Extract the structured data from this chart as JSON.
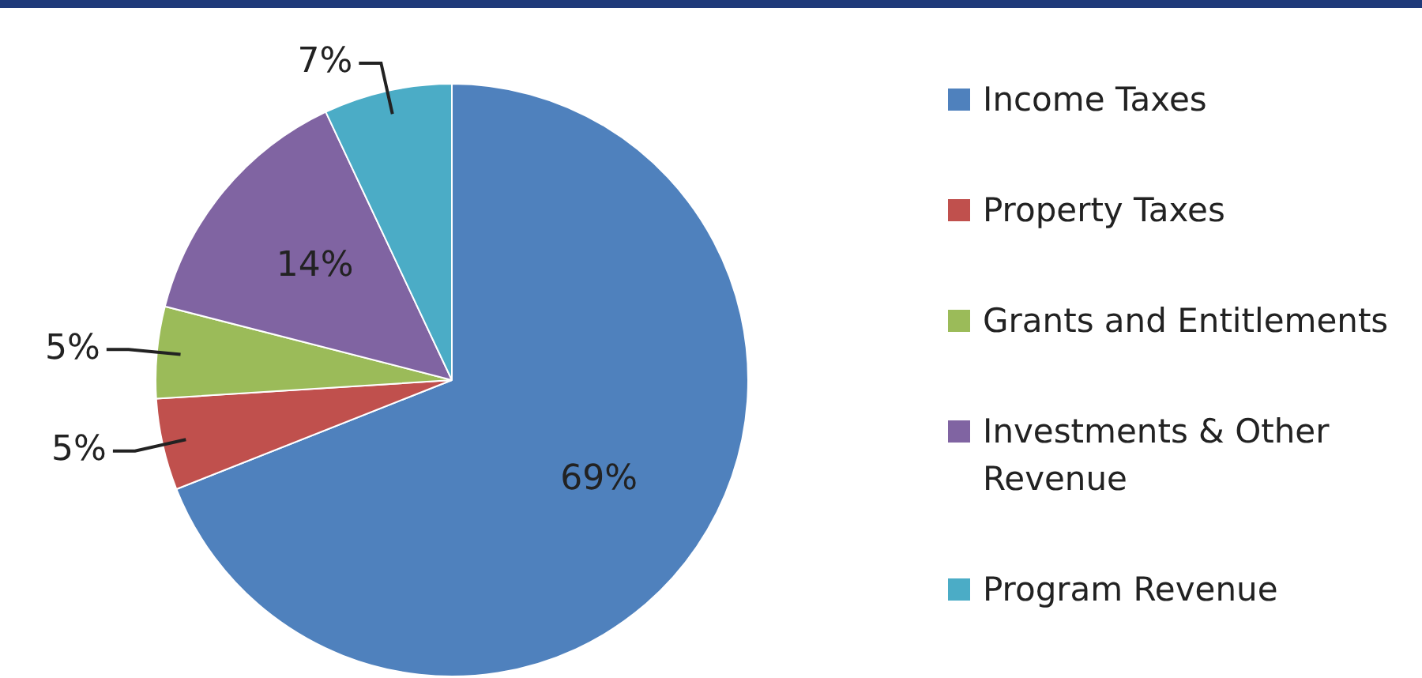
{
  "chart_data": {
    "type": "pie",
    "categories": [
      "Income Taxes",
      "Property Taxes",
      "Grants and Entitlements",
      "Investments & Other Revenue",
      "Program Revenue"
    ],
    "values": [
      69,
      5,
      5,
      14,
      7
    ],
    "colors": [
      "#4f81bd",
      "#c0504d",
      "#9bbb59",
      "#8064a2",
      "#4bacc6"
    ],
    "value_labels": [
      "69%",
      "5%",
      "5%",
      "14%",
      "7%"
    ],
    "legend": "right"
  }
}
